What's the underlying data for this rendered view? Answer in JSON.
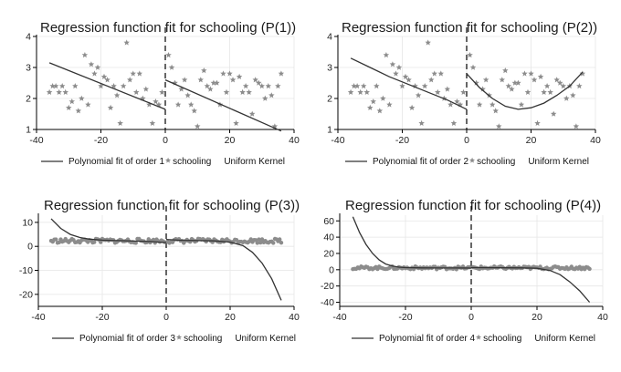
{
  "chart_data": [
    {
      "type": "scatter",
      "title": "Regression function fit for schooling (P(1))",
      "xlabel": "",
      "ylabel": "",
      "xlim": [
        -40,
        40
      ],
      "ylim": [
        1,
        4
      ],
      "x_ticks": [
        -40,
        -20,
        0,
        20,
        40
      ],
      "y_ticks": [
        1,
        2,
        3,
        4
      ],
      "grid": true,
      "cutoff_line": 0,
      "legend": {
        "position": "bottom",
        "entries": [
          "Polynomial fit of order 1",
          "schooling",
          "Uniform Kernel"
        ]
      },
      "series": [
        {
          "name": "schooling",
          "kind": "scatter",
          "x": [
            -36,
            -35,
            -34,
            -33,
            -32,
            -31,
            -30,
            -29,
            -28,
            -27,
            -26,
            -25,
            -24,
            -23,
            -22,
            -21,
            -20,
            -19,
            -18,
            -17,
            -16,
            -15,
            -14,
            -13,
            -12,
            -11,
            -10,
            -9,
            -8,
            -7,
            -6,
            -5,
            -4,
            -3,
            -2,
            -1,
            1,
            2,
            3,
            4,
            5,
            6,
            7,
            8,
            9,
            10,
            11,
            12,
            13,
            14,
            15,
            16,
            17,
            18,
            19,
            20,
            21,
            22,
            23,
            24,
            25,
            26,
            27,
            28,
            29,
            30,
            31,
            32,
            33,
            34,
            35,
            36
          ],
          "values": [
            2.2,
            2.4,
            2.4,
            2.2,
            2.4,
            2.2,
            1.7,
            1.9,
            2.4,
            1.6,
            2.0,
            3.4,
            1.8,
            3.1,
            2.8,
            3.0,
            2.4,
            2.7,
            2.6,
            1.7,
            2.4,
            2.1,
            1.2,
            2.4,
            3.8,
            2.6,
            2.8,
            2.2,
            2.8,
            2.0,
            2.3,
            1.8,
            1.2,
            1.9,
            1.8,
            2.2,
            3.4,
            3.0,
            2.5,
            1.8,
            2.3,
            2.6,
            2.1,
            1.8,
            1.6,
            1.1,
            2.6,
            2.9,
            2.4,
            2.3,
            2.5,
            2.5,
            1.8,
            2.8,
            2.2,
            2.8,
            2.6,
            1.2,
            2.7,
            2.2,
            2.4,
            2.2,
            1.5,
            2.6,
            2.5,
            2.4,
            2.0,
            2.4,
            2.1,
            1.1,
            2.4,
            2.8
          ]
        },
        {
          "name": "Polynomial fit of order 1",
          "kind": "line",
          "side": "left",
          "x": [
            -36,
            0
          ],
          "values": [
            3.15,
            1.65
          ]
        },
        {
          "name": "Polynomial fit of order 1",
          "kind": "line",
          "side": "right",
          "x": [
            0,
            36
          ],
          "values": [
            2.6,
            0.95
          ]
        }
      ]
    },
    {
      "type": "scatter",
      "title": "Regression function fit for schooling (P(2))",
      "xlabel": "",
      "ylabel": "",
      "xlim": [
        -40,
        40
      ],
      "ylim": [
        1,
        4
      ],
      "x_ticks": [
        -40,
        -20,
        0,
        20,
        40
      ],
      "y_ticks": [
        1,
        2,
        3,
        4
      ],
      "grid": true,
      "cutoff_line": 0,
      "legend": {
        "position": "bottom",
        "entries": [
          "Polynomial fit of order 2",
          "schooling",
          "Uniform Kernel"
        ]
      },
      "series": [
        {
          "name": "schooling",
          "kind": "scatter",
          "x": [
            -36,
            -35,
            -34,
            -33,
            -32,
            -31,
            -30,
            -29,
            -28,
            -27,
            -26,
            -25,
            -24,
            -23,
            -22,
            -21,
            -20,
            -19,
            -18,
            -17,
            -16,
            -15,
            -14,
            -13,
            -12,
            -11,
            -10,
            -9,
            -8,
            -7,
            -6,
            -5,
            -4,
            -3,
            -2,
            -1,
            1,
            2,
            3,
            4,
            5,
            6,
            7,
            8,
            9,
            10,
            11,
            12,
            13,
            14,
            15,
            16,
            17,
            18,
            19,
            20,
            21,
            22,
            23,
            24,
            25,
            26,
            27,
            28,
            29,
            30,
            31,
            32,
            33,
            34,
            35,
            36
          ],
          "values": [
            2.2,
            2.4,
            2.4,
            2.2,
            2.4,
            2.2,
            1.7,
            1.9,
            2.4,
            1.6,
            2.0,
            3.4,
            1.8,
            3.1,
            2.8,
            3.0,
            2.4,
            2.7,
            2.6,
            1.7,
            2.4,
            2.1,
            1.2,
            2.4,
            3.8,
            2.6,
            2.8,
            2.2,
            2.8,
            2.0,
            2.3,
            1.8,
            1.2,
            1.9,
            1.8,
            2.2,
            3.4,
            3.0,
            2.5,
            1.8,
            2.3,
            2.6,
            2.1,
            1.8,
            1.6,
            1.1,
            2.6,
            2.9,
            2.4,
            2.3,
            2.5,
            2.5,
            1.8,
            2.8,
            2.2,
            2.8,
            2.6,
            1.2,
            2.7,
            2.2,
            2.4,
            2.2,
            1.5,
            2.6,
            2.5,
            2.4,
            2.0,
            2.4,
            2.1,
            1.1,
            2.4,
            2.8
          ]
        },
        {
          "name": "Polynomial fit of order 2",
          "kind": "line",
          "side": "left",
          "x": [
            -36,
            -30,
            -24,
            -18,
            -12,
            -6,
            0
          ],
          "values": [
            3.3,
            3.0,
            2.7,
            2.45,
            2.2,
            1.95,
            1.65
          ]
        },
        {
          "name": "Polynomial fit of order 2",
          "kind": "line",
          "side": "right",
          "x": [
            0,
            4,
            8,
            12,
            16,
            20,
            24,
            28,
            32,
            36
          ],
          "values": [
            2.8,
            2.35,
            2.0,
            1.75,
            1.65,
            1.7,
            1.85,
            2.1,
            2.4,
            2.85
          ]
        }
      ]
    },
    {
      "type": "scatter",
      "title": "Regression function fit for schooling (P(3))",
      "xlabel": "",
      "ylabel": "",
      "xlim": [
        -40,
        40
      ],
      "ylim": [
        -25,
        13
      ],
      "x_ticks": [
        -40,
        -20,
        0,
        20,
        40
      ],
      "y_ticks": [
        -20,
        -10,
        0,
        10
      ],
      "grid": true,
      "cutoff_line": 0,
      "legend": {
        "position": "bottom",
        "entries": [
          "Polynomial fit of order 3",
          "schooling",
          "Uniform Kernel"
        ]
      },
      "series": [
        {
          "name": "schooling",
          "kind": "dense_band",
          "x_range": [
            -36,
            36
          ],
          "center": 2.3,
          "spread": 0.9
        },
        {
          "name": "Polynomial fit of order 3",
          "kind": "line",
          "side": "left",
          "x": [
            -36,
            -33,
            -30,
            -27,
            -24,
            -20,
            -15,
            -10,
            -5,
            0
          ],
          "values": [
            11.5,
            7.5,
            5.0,
            3.7,
            3.0,
            2.6,
            2.4,
            2.2,
            2.0,
            1.6
          ]
        },
        {
          "name": "Polynomial fit of order 3",
          "kind": "line",
          "side": "right",
          "x": [
            0,
            5,
            10,
            15,
            20,
            24,
            27,
            30,
            33,
            36
          ],
          "values": [
            2.9,
            2.5,
            2.4,
            2.3,
            1.8,
            0.3,
            -2.5,
            -7.0,
            -13.5,
            -22.5
          ]
        }
      ]
    },
    {
      "type": "scatter",
      "title": "Regression function fit for schooling (P(4))",
      "xlabel": "",
      "ylabel": "",
      "xlim": [
        -40,
        40
      ],
      "ylim": [
        -45,
        67
      ],
      "x_ticks": [
        -40,
        -20,
        0,
        20,
        40
      ],
      "y_ticks": [
        -40,
        -20,
        0,
        20,
        40,
        60
      ],
      "grid": true,
      "cutoff_line": 0,
      "legend": {
        "position": "bottom",
        "entries": [
          "Polynomial fit of order 4",
          "schooling",
          "Uniform Kernel"
        ]
      },
      "series": [
        {
          "name": "schooling",
          "kind": "dense_band",
          "x_range": [
            -36,
            36
          ],
          "center": 2.3,
          "spread": 1.8
        },
        {
          "name": "Polynomial fit of order 4",
          "kind": "line",
          "side": "left",
          "x": [
            -36,
            -34,
            -32,
            -30,
            -28,
            -26,
            -24,
            -22,
            -20,
            -15,
            -10,
            -5,
            0
          ],
          "values": [
            65,
            46,
            31,
            20,
            12,
            7,
            4.5,
            3.2,
            2.6,
            2.3,
            2.2,
            2.1,
            2.0
          ]
        },
        {
          "name": "Polynomial fit of order 4",
          "kind": "line",
          "side": "right",
          "x": [
            0,
            5,
            10,
            15,
            20,
            24,
            27,
            30,
            33,
            36
          ],
          "values": [
            2.6,
            2.5,
            2.4,
            2.3,
            1.8,
            -1.0,
            -6.0,
            -15.0,
            -26.0,
            -40.0
          ]
        }
      ]
    }
  ]
}
